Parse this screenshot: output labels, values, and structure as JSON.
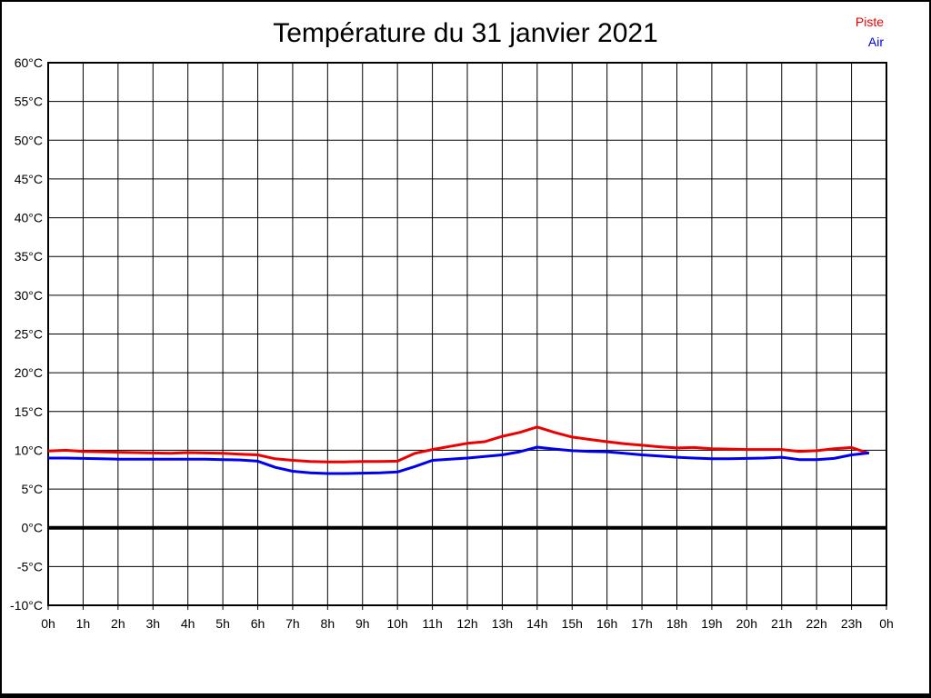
{
  "title": "Température du 31 janvier 2021",
  "legend": {
    "position": "top-right",
    "items": [
      {
        "label": "Piste",
        "color": "#ee0000"
      },
      {
        "label": "Air",
        "color": "#0000ee"
      }
    ]
  },
  "chart_data": {
    "type": "line",
    "title": "Température du 31 janvier 2021",
    "xlabel": "",
    "ylabel": "",
    "xlim": [
      0,
      24
    ],
    "ylim": [
      -10,
      60
    ],
    "grid": true,
    "grid_color": "#000000",
    "background_color": "#ffffff",
    "zero_line": {
      "value": 0,
      "color": "#000000",
      "width": 4
    },
    "x_tick_positions": [
      0,
      1,
      2,
      3,
      4,
      5,
      6,
      7,
      8,
      9,
      10,
      11,
      12,
      13,
      14,
      15,
      16,
      17,
      18,
      19,
      20,
      21,
      22,
      23,
      24
    ],
    "x_tick_labels": [
      "0h",
      "1h",
      "2h",
      "3h",
      "4h",
      "5h",
      "6h",
      "7h",
      "8h",
      "9h",
      "10h",
      "11h",
      "12h",
      "13h",
      "14h",
      "15h",
      "16h",
      "17h",
      "18h",
      "19h",
      "20h",
      "21h",
      "22h",
      "23h",
      "0h"
    ],
    "y_tick_values": [
      60,
      55,
      50,
      45,
      40,
      35,
      30,
      25,
      20,
      15,
      10,
      5,
      0,
      -5,
      -10
    ],
    "y_tick_labels": [
      "60°C",
      "55°C",
      "50°C",
      "45°C",
      "40°C",
      "35°C",
      "30°C",
      "25°C",
      "20°C",
      "15°C",
      "10°C",
      "5°C",
      "0°C",
      "-5°C",
      "-10°C"
    ],
    "series": [
      {
        "name": "Piste",
        "color": "#ee0000",
        "line_width": 3,
        "x_start": 0,
        "x_step": 0.5,
        "values": [
          9.9,
          10.0,
          9.85,
          9.8,
          9.75,
          9.7,
          9.65,
          9.6,
          9.7,
          9.65,
          9.6,
          9.5,
          9.4,
          8.9,
          8.7,
          8.55,
          8.5,
          8.5,
          8.55,
          8.55,
          8.6,
          9.6,
          10.1,
          10.5,
          10.9,
          11.1,
          11.8,
          12.3,
          13.0,
          12.3,
          11.7,
          11.4,
          11.1,
          10.85,
          10.65,
          10.45,
          10.3,
          10.35,
          10.2,
          10.15,
          10.1,
          10.1,
          10.1,
          9.85,
          9.95,
          10.2,
          10.35,
          9.6
        ]
      },
      {
        "name": "Air",
        "color": "#0000ee",
        "line_width": 3,
        "x_start": 0,
        "x_step": 0.5,
        "values": [
          9.0,
          9.0,
          8.95,
          8.9,
          8.85,
          8.85,
          8.85,
          8.85,
          8.85,
          8.85,
          8.8,
          8.75,
          8.6,
          7.8,
          7.3,
          7.1,
          7.0,
          7.0,
          7.05,
          7.1,
          7.2,
          7.9,
          8.7,
          8.85,
          9.0,
          9.2,
          9.4,
          9.8,
          10.4,
          10.15,
          9.95,
          9.85,
          9.8,
          9.6,
          9.4,
          9.25,
          9.1,
          9.0,
          8.9,
          8.9,
          8.95,
          9.0,
          9.1,
          8.8,
          8.8,
          8.95,
          9.4,
          9.65
        ]
      }
    ],
    "legend_position": "top-right"
  }
}
